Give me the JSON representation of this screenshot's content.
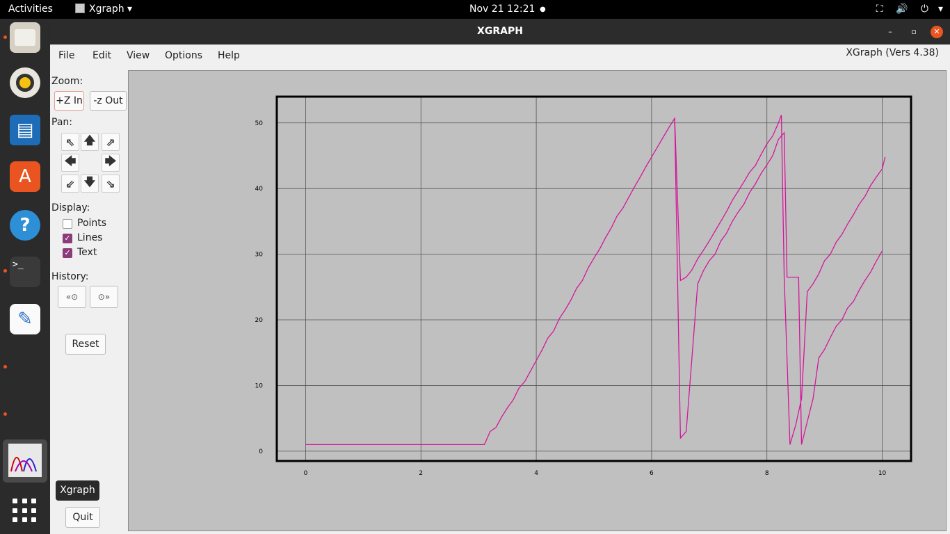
{
  "topbar": {
    "activities": "Activities",
    "app_name": "Xgraph",
    "clock": "Nov 21  12:21",
    "dot": "●",
    "network_icon": "⛶",
    "volume_icon": "🔊",
    "power_icon": "⏻"
  },
  "dock": {
    "tooltip": "Xgraph",
    "help_glyph": "?",
    "terminal_glyph": ">_",
    "software_glyph": "A",
    "editor_glyph": "✎"
  },
  "window": {
    "title": "XGRAPH",
    "min_glyph": "–",
    "max_glyph": "▫",
    "close_glyph": "✕",
    "version": "XGraph (Vers 4.38)"
  },
  "menu": {
    "file": "File",
    "edit": "Edit",
    "view": "View",
    "options": "Options",
    "help": "Help"
  },
  "controls": {
    "zoom_label": "Zoom:",
    "zoom_in": "+Z In",
    "zoom_out": "-z Out",
    "pan_label": "Pan:",
    "pan": {
      "up_left": "⇖",
      "up": "🡅",
      "up_right": "⇗",
      "left": "🡄",
      "right": "🡆",
      "down_left": "⇙",
      "down": "🡇",
      "down_right": "⇘"
    },
    "display_label": "Display:",
    "points_label": "Points",
    "points_checked": false,
    "lines_label": "Lines",
    "lines_checked": true,
    "text_label": "Text",
    "text_checked": true,
    "check_glyph": "✓",
    "history_label": "History:",
    "history_back": "«⊙",
    "history_forward": "⊙»",
    "reset": "Reset",
    "quit": "Quit"
  },
  "colors": {
    "line": "#d4169b",
    "plot_bg": "#c0c0c0",
    "accent": "#e95420"
  },
  "chart_data": {
    "type": "line",
    "xlim": [
      -0.5,
      10.5
    ],
    "ylim": [
      -1.5,
      54
    ],
    "x_ticks": [
      0,
      2,
      4,
      6,
      8,
      10
    ],
    "y_ticks": [
      0,
      10,
      20,
      30,
      40,
      50
    ],
    "grid": true,
    "series": [
      {
        "points": [
          [
            0,
            1
          ],
          [
            3.1,
            1
          ],
          [
            3.2,
            3
          ],
          [
            3.3,
            3.6
          ],
          [
            3.4,
            5.2
          ],
          [
            3.5,
            6.6
          ],
          [
            3.6,
            7.8
          ],
          [
            3.7,
            9.6
          ],
          [
            3.8,
            10.6
          ],
          [
            3.9,
            12.2
          ],
          [
            4.0,
            13.8
          ],
          [
            4.1,
            15.4
          ],
          [
            4.2,
            17.2
          ],
          [
            4.3,
            18.3
          ],
          [
            4.4,
            20.2
          ],
          [
            4.5,
            21.5
          ],
          [
            4.6,
            23
          ],
          [
            4.7,
            24.8
          ],
          [
            4.8,
            26
          ],
          [
            4.9,
            27.9
          ],
          [
            5.0,
            29.4
          ],
          [
            5.1,
            30.8
          ],
          [
            5.2,
            32.5
          ],
          [
            5.3,
            34
          ],
          [
            5.4,
            35.8
          ],
          [
            5.5,
            37
          ],
          [
            5.6,
            38.6
          ],
          [
            5.7,
            40.2
          ],
          [
            5.8,
            41.7
          ],
          [
            5.9,
            43.3
          ],
          [
            6.0,
            44.8
          ],
          [
            6.1,
            46.3
          ],
          [
            6.2,
            47.8
          ],
          [
            6.3,
            49.3
          ],
          [
            6.4,
            50.7
          ],
          [
            6.5,
            2
          ],
          [
            6.6,
            3
          ],
          [
            6.8,
            25.5
          ],
          [
            6.9,
            27.5
          ],
          [
            7.0,
            29
          ],
          [
            7.1,
            30
          ],
          [
            7.2,
            32
          ],
          [
            7.3,
            33.2
          ],
          [
            7.4,
            35
          ],
          [
            7.5,
            36.4
          ],
          [
            7.6,
            37.6
          ],
          [
            7.7,
            39.4
          ],
          [
            7.8,
            40.7
          ],
          [
            7.9,
            42.3
          ],
          [
            8.0,
            43.6
          ],
          [
            8.1,
            45
          ],
          [
            8.2,
            47.5
          ],
          [
            8.3,
            48.5
          ],
          [
            8.35,
            26.5
          ],
          [
            8.55,
            26.5
          ],
          [
            8.6,
            1
          ],
          [
            8.7,
            4.5
          ],
          [
            8.8,
            8
          ],
          [
            8.9,
            14.2
          ],
          [
            9.0,
            15.5
          ],
          [
            9.1,
            17.3
          ],
          [
            9.2,
            19
          ],
          [
            9.3,
            20
          ],
          [
            9.4,
            21.8
          ],
          [
            9.5,
            22.8
          ],
          [
            9.6,
            24.5
          ],
          [
            9.7,
            26
          ],
          [
            9.8,
            27.3
          ],
          [
            9.9,
            29
          ],
          [
            10.0,
            30.5
          ]
        ]
      },
      {
        "points": [
          [
            6.4,
            50.7
          ],
          [
            6.5,
            26
          ],
          [
            6.6,
            26.5
          ],
          [
            6.7,
            27.6
          ],
          [
            6.8,
            29.3
          ],
          [
            6.9,
            30.6
          ],
          [
            7.0,
            32
          ],
          [
            7.1,
            33.5
          ],
          [
            7.2,
            35
          ],
          [
            7.3,
            36.5
          ],
          [
            7.4,
            38.2
          ],
          [
            7.5,
            39.6
          ],
          [
            7.6,
            41
          ],
          [
            7.7,
            42.5
          ],
          [
            7.8,
            43.5
          ],
          [
            7.9,
            45.2
          ],
          [
            8.0,
            46.8
          ],
          [
            8.1,
            48
          ],
          [
            8.2,
            50
          ],
          [
            8.25,
            51.2
          ],
          [
            8.3,
            26.5
          ],
          [
            8.4,
            1
          ],
          [
            8.5,
            4
          ],
          [
            8.6,
            8
          ],
          [
            8.7,
            24.3
          ],
          [
            8.8,
            25.5
          ],
          [
            8.9,
            27
          ],
          [
            9.0,
            29
          ],
          [
            9.1,
            30
          ],
          [
            9.2,
            31.8
          ],
          [
            9.3,
            33
          ],
          [
            9.4,
            34.6
          ],
          [
            9.5,
            36
          ],
          [
            9.6,
            37.6
          ],
          [
            9.7,
            38.8
          ],
          [
            9.8,
            40.5
          ],
          [
            9.9,
            41.8
          ],
          [
            10.0,
            43
          ],
          [
            10.05,
            44.8
          ]
        ]
      }
    ]
  }
}
